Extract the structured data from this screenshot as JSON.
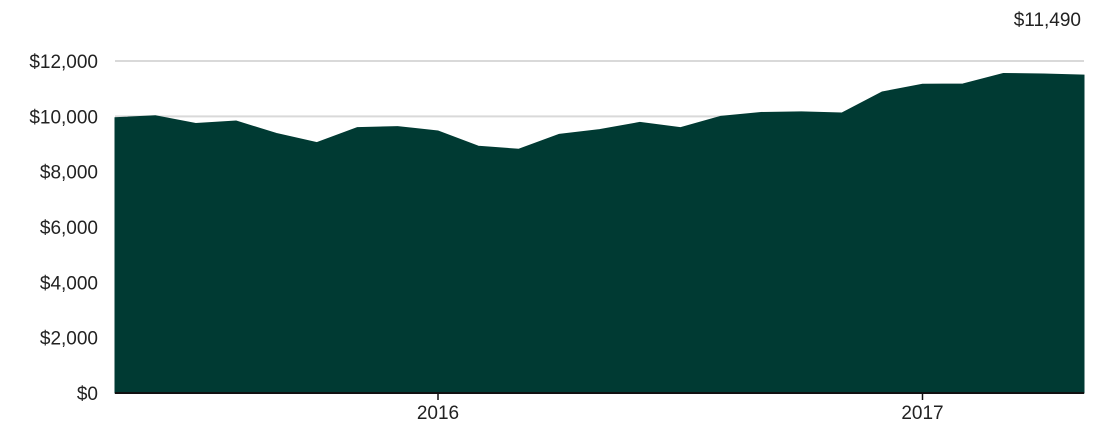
{
  "colors": {
    "area_fill": "#003a33",
    "gridline": "#d9d9d9",
    "axis_line": "#111111",
    "text": "#222222"
  },
  "end_value_label": "$11,490",
  "chart_data": {
    "type": "area",
    "x": [
      "2015-05",
      "2015-06",
      "2015-07",
      "2015-08",
      "2015-09",
      "2015-10",
      "2015-11",
      "2015-12",
      "2016-01",
      "2016-02",
      "2016-03",
      "2016-04",
      "2016-05",
      "2016-06",
      "2016-07",
      "2016-08",
      "2016-09",
      "2016-10",
      "2016-11",
      "2016-12",
      "2017-01",
      "2017-02",
      "2017-03",
      "2017-04",
      "2017-05"
    ],
    "series": [
      {
        "values": [
          9950,
          10020,
          9740,
          9830,
          9380,
          9050,
          9590,
          9630,
          9470,
          8920,
          8810,
          9350,
          9520,
          9780,
          9590,
          10000,
          10140,
          10160,
          10120,
          10880,
          11160,
          11170,
          11550,
          11530,
          11490
        ]
      }
    ],
    "x_range": [
      "2015-05",
      "2017-05"
    ],
    "ylim": [
      0,
      12000
    ],
    "y_ticks": [
      0,
      2000,
      4000,
      6000,
      8000,
      10000,
      12000
    ],
    "y_tick_labels": [
      "$0",
      "$2,000",
      "$4,000",
      "$6,000",
      "$8,000",
      "$10,000",
      "$12,000"
    ],
    "x_ticks": [
      "2016-01",
      "2017-01"
    ],
    "x_tick_labels": [
      "2016",
      "2017"
    ],
    "title": "",
    "xlabel": "",
    "ylabel": "",
    "grid": "horizontal",
    "legend": "none"
  }
}
